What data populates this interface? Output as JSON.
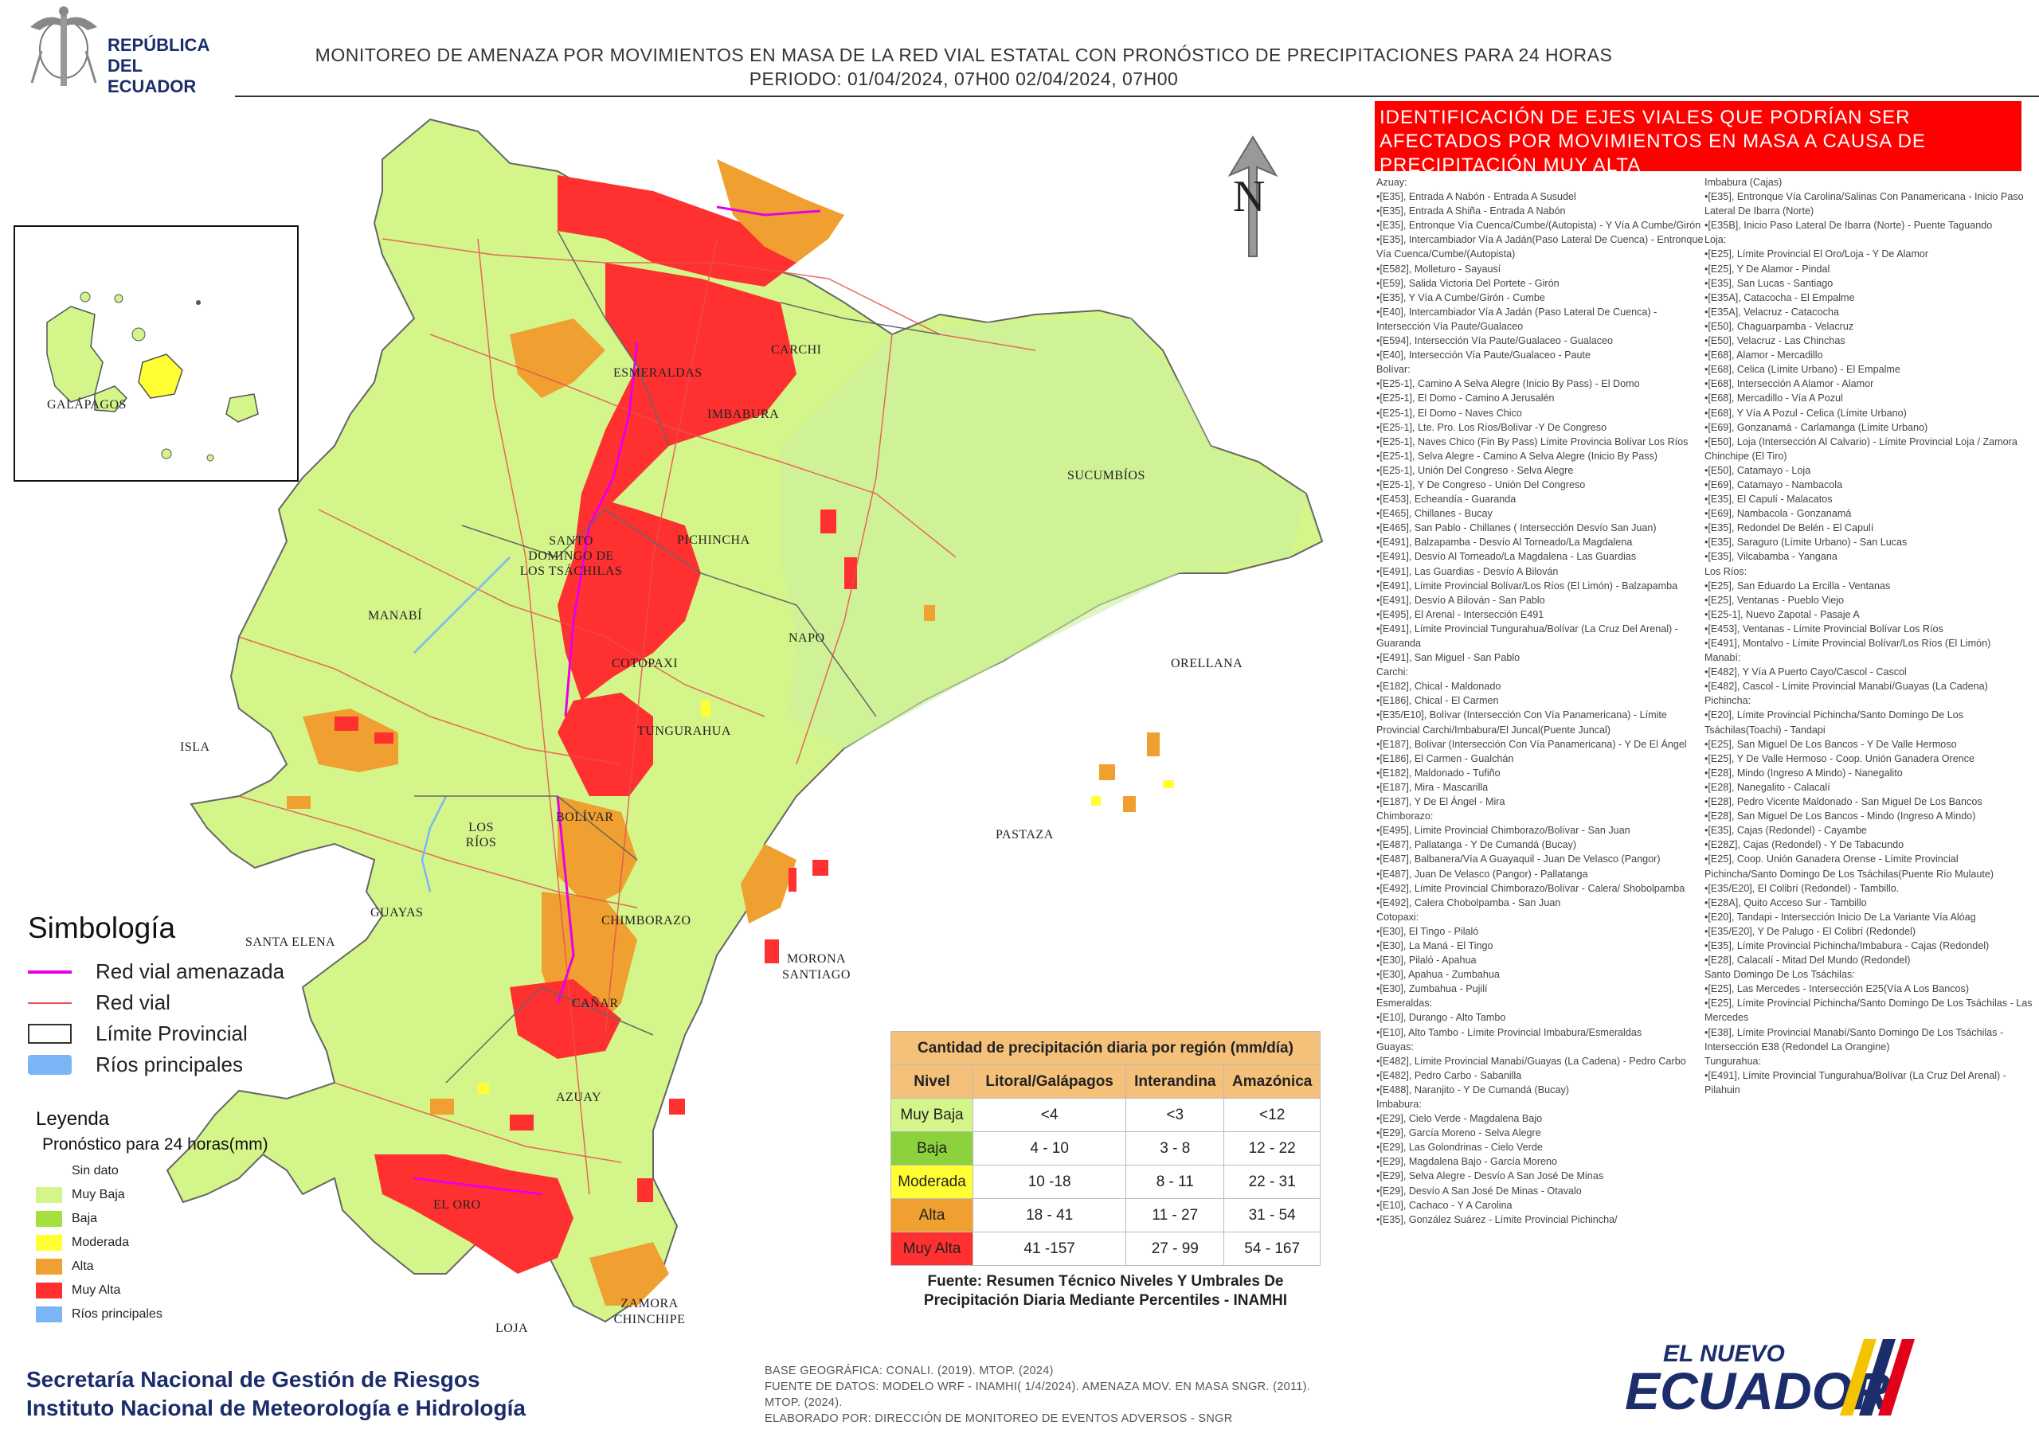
{
  "header": {
    "country_line1": "REPÚBLICA",
    "country_line2": "DEL ECUADOR",
    "title_line1": "MONITOREO DE AMENAZA POR MOVIMIENTOS EN MASA DE LA RED VIAL  ESTATAL  CON PRONÓSTICO  DE  PRECIPITACIONES PARA 24 HORAS",
    "title_line2": "PERIODO: 01/04/2024, 07H00 02/04/2024, 07H00"
  },
  "map": {
    "north_label": "N",
    "inset_label": "GALÁPAGOS",
    "isla_label": "ISLA",
    "provinces": [
      {
        "name": "ESMERALDAS"
      },
      {
        "name": "CARCHI"
      },
      {
        "name": "IMBABURA"
      },
      {
        "name": "SUCUMBÍOS"
      },
      {
        "name": "SANTO DOMINGO DE LOS TSÁCHILAS"
      },
      {
        "name": "PICHINCHA"
      },
      {
        "name": "MANABÍ"
      },
      {
        "name": "NAPO"
      },
      {
        "name": "ORELLANA"
      },
      {
        "name": "COTOPAXI"
      },
      {
        "name": "TUNGURAHUA"
      },
      {
        "name": "LOS RÍOS"
      },
      {
        "name": "BOLÍVAR"
      },
      {
        "name": "PASTAZA"
      },
      {
        "name": "GUAYAS"
      },
      {
        "name": "SANTA ELENA"
      },
      {
        "name": "CHIMBORAZO"
      },
      {
        "name": "MORONA SANTIAGO"
      },
      {
        "name": "CAÑAR"
      },
      {
        "name": "AZUAY"
      },
      {
        "name": "EL ORO"
      },
      {
        "name": "LOJA"
      },
      {
        "name": "ZAMORA CHINCHIPE"
      }
    ]
  },
  "simbologia": {
    "title": "Simbología",
    "items": [
      {
        "label": "Red vial amenazada",
        "color": "#e600e6"
      },
      {
        "label": "Red vial",
        "color": "#e85050"
      },
      {
        "label": "Límite Provincial",
        "color": "#333333"
      },
      {
        "label": "Ríos principales",
        "color": "#7ab6f5"
      }
    ]
  },
  "leyenda": {
    "title": "Leyenda",
    "subtitle": "Pronóstico para 24 horas(mm)",
    "items": [
      {
        "label": "Sin dato",
        "color": "#ffffff"
      },
      {
        "label": "Muy Baja",
        "color": "#d4f58a"
      },
      {
        "label": "Baja",
        "color": "#a6e03c"
      },
      {
        "label": "Moderada",
        "color": "#ffff33"
      },
      {
        "label": "Alta",
        "color": "#f0a030"
      },
      {
        "label": "Muy Alta",
        "color": "#ff3030"
      },
      {
        "label": "Ríos principales",
        "color": "#7ab6f5"
      }
    ]
  },
  "precip_table": {
    "title": "Cantidad de precipitación diaria por región (mm/día)",
    "headers": [
      "Nivel",
      "Litoral/Galápagos",
      "Interandina",
      "Amazónica"
    ],
    "rows": [
      {
        "level": "Muy Baja",
        "color": "#d4f58a",
        "values": [
          "<4",
          "<3",
          "<12"
        ]
      },
      {
        "level": "Baja",
        "color": "#8bd23c",
        "values": [
          "4 - 10",
          "3 - 8",
          "12 - 22"
        ]
      },
      {
        "level": "Moderada",
        "color": "#ffff33",
        "values": [
          "10 -18",
          "8 - 11",
          "22 - 31"
        ]
      },
      {
        "level": "Alta",
        "color": "#f0a030",
        "values": [
          "18 - 41",
          "11 - 27",
          "31 - 54"
        ]
      },
      {
        "level": "Muy Alta",
        "color": "#ff3030",
        "values": [
          "41 -157",
          "27 - 99",
          "54 - 167"
        ]
      }
    ],
    "source_line1": "Fuente: Resumen Técnico Niveles Y Umbrales De",
    "source_line2": "Precipitación Diaria Mediante Percentiles - INAMHI"
  },
  "footer": {
    "org_line1": "Secretaría Nacional de Gestión de Riesgos",
    "org_line2": "Instituto Nacional de Meteorología e Hidrología",
    "base_line1": "BASE GEOGRÁFICA: CONALI. (2019). MTOP. (2024)",
    "base_line2": "FUENTE DE DATOS: MODELO WRF - INAMHI( 1/4/2024).  AMENAZA MOV. EN MASA SNGR. (2011). MTOP. (2024).",
    "base_line3": "ELABORADO POR: DIRECCIÓN DE MONITOREO DE EVENTOS ADVERSOS - SNGR",
    "logo_top": "EL NUEVO",
    "logo_main": "ECUADOR"
  },
  "roads": {
    "header": "IDENTIFICACIÓN DE EJES VIALES QUE PODRÍAN SER AFECTADOS POR MOVIMIENTOS EN MASA A CAUSA DE PRECIPITACIÓN MUY ALTA",
    "col1": [
      "Azuay:",
      "•[E35], Entrada A Nabón - Entrada A Susudel",
      "•[E35], Entrada A Shiña - Entrada A Nabón",
      "•[E35], Entronque Vía Cuenca/Cumbe/(Autopista) - Y Vía A Cumbe/Girón",
      "•[E35], Intercambiador Vía A Jadán(Paso Lateral De Cuenca) - Entronque Vía Cuenca/Cumbe/(Autopista)",
      "•[E582], Molleturo - Sayausí",
      "•[E59], Salida Victoria Del Portete - Girón",
      "•[E35], Y Vía A Cumbe/Girón - Cumbe",
      "•[E40], Intercambiador Vía A Jadán (Paso Lateral De Cuenca) - Intersección Vía Paute/Gualaceo",
      "•[E594], Intersección Vía Paute/Gualaceo - Gualaceo",
      "•[E40], Intersección Vía Paute/Gualaceo - Paute",
      "Bolívar:",
      "•[E25-1], Camino A Selva Alegre (Inicio By Pass) - El Domo",
      "•[E25-1], El Domo - Camino A Jerusalén",
      "•[E25-1], El Domo - Naves Chico",
      "•[E25-1], Lte. Pro. Los Ríos/Bolívar -Y De Congreso",
      "•[E25-1], Naves Chico (Fin By Pass) Límite Provincia Bolívar Los Ríos",
      "•[E25-1], Selva Alegre - Camino A Selva Alegre (Inicio By Pass)",
      "•[E25-1], Unión Del Congreso - Selva  Alegre",
      "•[E25-1], Y De Congreso - Unión Del Congreso",
      "•[E453], Echeandía - Guaranda",
      "•[E465], Chillanes - Bucay",
      "•[E465], San Pablo - Chillanes ( Intersección Desvío San Juan)",
      "•[E491], Balzapamba - Desvío Al Torneado/La Magdalena",
      "•[E491], Desvío Al Torneado/La Magdalena - Las Guardias",
      "•[E491], Las Guardias - Desvío A Bilován",
      "•[E491], Límite Provincial Bolívar/Los Ríos (El Limón) - Balzapamba",
      "•[E491], Desvío A Bilován - San Pablo",
      "•[E495], El Arenal - Intersección E491",
      "•[E491], Límite Provincial Tungurahua/Bolívar (La Cruz Del Arenal) - Guaranda",
      "•[E491], San Miguel - San Pablo",
      "Carchi:",
      "•[E182], Chical - Maldonado",
      "•[E186], Chical - El Carmen",
      "•[E35/E10], Bolívar (Intersección Con Vía Panamericana) - Límite Provincial Carchi/Imbabura/El Juncal(Puente Juncal)",
      "•[E187], Bolívar (Intersección Con Vía Panamericana) - Y De El Ángel",
      "•[E186], El Carmen - Gualchán",
      "•[E182], Maldonado - Tufiño",
      "•[E187], Mira - Mascarilla",
      "•[E187], Y De El Ángel - Mira",
      "Chimborazo:",
      "•[E495], Límite Provincial Chimborazo/Bolívar - San Juan",
      "•[E487], Pallatanga - Y De Cumandá (Bucay)",
      "•[E487], Balbanera/Vía A Guayaquil - Juan De Velasco (Pangor)",
      "•[E487], Juan De Velasco (Pangor) - Pallatanga",
      "•[E492], Límite Provincial Chimborazo/Bolívar - Calera/ Shobolpamba",
      "•[E492], Calera Chobolpamba - San Juan",
      "Cotopaxi:",
      "•[E30], El Tingo - Pilaló",
      "•[E30], La Maná - El Tingo",
      "•[E30], Pilaló - Apahua",
      "•[E30], Apahua - Zumbahua",
      "•[E30], Zumbahua - Pujilí",
      "Esmeraldas:",
      "•[E10], Durango - Alto Tambo",
      "•[E10], Alto Tambo - Límite Provincial Imbabura/Esmeraldas",
      "Guayas:",
      "•[E482], Límite Provincial Manabí/Guayas (La Cadena) - Pedro Carbo",
      "•[E482], Pedro Carbo - Sabanilla",
      "•[E488], Naranjito - Y De Cumandá (Bucay)",
      "Imbabura:",
      "•[E29], Cielo Verde - Magdalena Bajo",
      "•[E29], García Moreno - Selva  Alegre",
      "•[E29], Las Golondrinas - Cielo Verde",
      "•[E29], Magdalena Bajo - García Moreno",
      "•[E29], Selva  Alegre - Desvío  A San José De Minas",
      "•[E29], Desvío  A San José De Minas - Otavalo",
      "•[E10], Cachaco - Y A Carolina",
      "•[E35], González Suárez - Límite Provincial Pichincha/"
    ],
    "col2": [
      "Imbabura (Cajas)",
      "•[E35], Entronque Vía Carolina/Salinas Con Panamericana - Inicio Paso Lateral De Ibarra (Norte)",
      "•[E35B], Inicio Paso Lateral De Ibarra (Norte) - Puente Taguando",
      "Loja:",
      "•[E25], Límite Provincial El Oro/Loja - Y De Alamor",
      "•[E25], Y De Alamor - Pindal",
      "•[E35], San Lucas - Santiago",
      "•[E35A], Catacocha - El Empalme",
      "•[E35A], Velacruz - Catacocha",
      "•[E50], Chaguarpamba - Velacruz",
      "•[E50], Velacruz - Las Chinchas",
      "•[E68], Alamor - Mercadillo",
      "•[E68], Celica (Límite Urbano) - El Empalme",
      "•[E68], Intersección A  Alamor - Alamor",
      "•[E68], Mercadillo - Vía  A Pozul",
      "•[E68], Y Vía A Pozul - Celica (Límite Urbano)",
      "•[E69], Gonzanamá - Carlamanga (Límite Urbano)",
      "•[E50], Loja (Intersección Al Calvario) - Límite Provincial Loja / Zamora Chinchipe (El Tiro)",
      "•[E50], Catamayo - Loja",
      "•[E69], Catamayo - Nambacola",
      "•[E35], El Capulí - Malacatos",
      "•[E69], Nambacola - Gonzanamá",
      "•[E35], Redondel De Belén - El Capulí",
      "•[E35], Saraguro (Límite Urbano) - San Lucas",
      "•[E35], Vilcabamba - Yangana",
      "Los Ríos:",
      "•[E25], San Eduardo La Ercilla - Ventanas",
      "•[E25], Ventanas - Pueblo Viejo",
      "•[E25-1], Nuevo Zapotal - Pasaje A",
      "•[E453], Ventanas - Límite Provincial Bolívar Los Ríos",
      "•[E491], Montalvo - Límite Provincial Bolívar/Los Ríos (El Limón)",
      "Manabí:",
      "•[E482], Y Vía A Puerto Cayo/Cascol - Cascol",
      "•[E482], Cascol - Límite Provincial Manabí/Guayas (La Cadena)",
      "Pichincha:",
      "•[E20], Límite Provincial Pichincha/Santo Domingo De Los Tsáchilas(Toachi) - Tandapi",
      "•[E25], San Miguel De Los Bancos - Y De Valle Hermoso",
      "•[E25], Y De Valle Hermoso - Coop. Unión Ganadera Orence",
      "•[E28], Mindo (Ingreso A Mindo) - Nanegalito",
      "•[E28], Nanegalito - Calacalí",
      "•[E28], Pedro Vicente Maldonado - San Miguel De Los Bancos",
      "•[E28], San Miguel De Los Bancos - Mindo (Ingreso A Mindo)",
      "•[E35], Cajas (Redondel) - Cayambe",
      "•[E28Z], Cajas (Redondel) - Y De Tabacundo",
      "•[E25], Coop. Unión Ganadera Orense - Límite Provincial Pichincha/Santo Domingo De Los Tsáchilas(Puente Río Mulaute)",
      "•[E35/E20], El Colibrí (Redondel) - Tambillo.",
      "•[E28A], Quito Acceso Sur - Tambillo",
      "•[E20], Tandapi - Intersección Inicio De La Variante Vía Alóag",
      "•[E35/E20], Y De Palugo - El Colibrí (Redondel)",
      "•[E35], Límite Provincial Pichincha/Imbabura - Cajas (Redondel)",
      "•[E28], Calacalí - Mitad Del Mundo (Redondel)",
      "Santo Domingo De Los Tsáchilas:",
      "•[E25], Las Mercedes - Intersección E25(Vía A Los Bancos)",
      "•[E25], Límite Provincial Pichincha/Santo Domingo De Los Tsáchilas - Las Mercedes",
      "•[E38], Límite Provincial Manabí/Santo Domingo De Los Tsáchilas - Intersección E38 (Redondel La Orangine)",
      "Tungurahua:",
      "•[E491], Límite Provincial Tungurahua/Bolívar (La Cruz Del Arenal) - Pilahuin"
    ]
  }
}
